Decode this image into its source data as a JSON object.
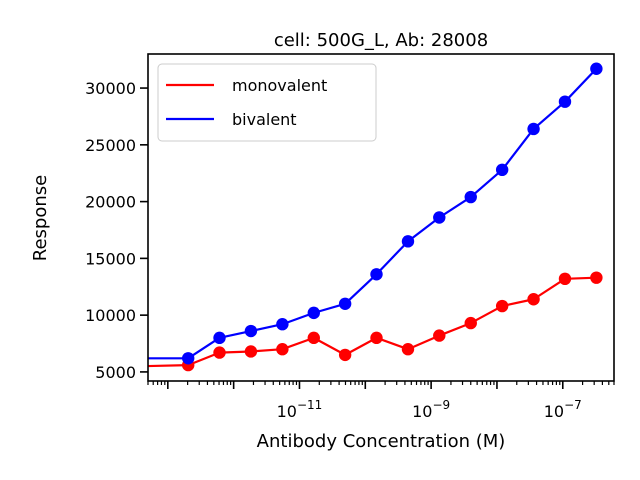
{
  "chart_data": {
    "type": "line",
    "title": "cell: 500G_L, Ab: 28008",
    "xlabel": "Antibody Concentration (M)",
    "ylabel": "Response",
    "x_scale": "log",
    "xlim": [
      5e-14,
      6e-07
    ],
    "ylim": [
      4200,
      33000
    ],
    "x": [
      3.7e-14,
      2.04e-13,
      6.1e-13,
      1.83e-12,
      5.5e-12,
      1.65e-11,
      4.94e-11,
      1.48e-10,
      4.45e-10,
      1.33e-09,
      4e-09,
      1.2e-08,
      3.6e-08,
      1.08e-07,
      3.24e-07
    ],
    "x_ticks": [
      {
        "value": 1e-11,
        "base": "10",
        "exp": "−11"
      },
      {
        "value": 1e-09,
        "base": "10",
        "exp": "−9"
      },
      {
        "value": 1e-07,
        "base": "10",
        "exp": "−7"
      }
    ],
    "y_ticks": [
      5000,
      10000,
      15000,
      20000,
      25000,
      30000
    ],
    "legend_position": "upper-left",
    "series": [
      {
        "name": "monovalent",
        "color": "#ff0000",
        "values": [
          5500,
          5600,
          6700,
          6800,
          7000,
          8000,
          6500,
          8000,
          7000,
          8200,
          9300,
          10800,
          11400,
          13200,
          13300
        ]
      },
      {
        "name": "bivalent",
        "color": "#0000ff",
        "values": [
          6200,
          6200,
          8000,
          8600,
          9200,
          10200,
          11000,
          13600,
          16500,
          18600,
          20400,
          22800,
          26400,
          28800,
          31700
        ]
      }
    ]
  }
}
